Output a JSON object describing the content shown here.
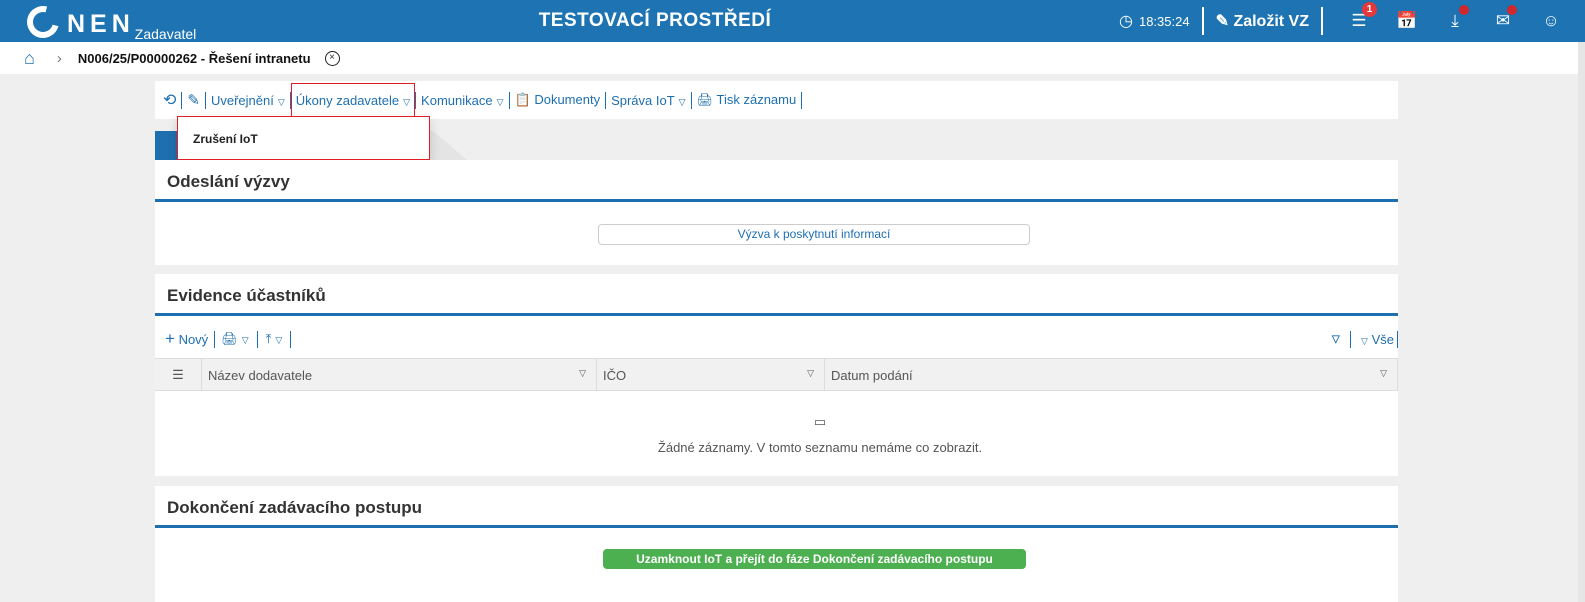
{
  "header": {
    "logo": "NEN",
    "logo_sub": "Zadavatel",
    "env_title": "TESTOVACÍ PROSTŘEDÍ",
    "time": "18:35:24",
    "create_label": "Založit VZ",
    "menu_badge": "1",
    "icons": [
      "clock-icon",
      "edit-icon",
      "menu-icon",
      "calendar-icon",
      "download-icon",
      "mail-icon",
      "user-icon"
    ],
    "accent": "#1e74b3"
  },
  "breadcrumb": {
    "title": "N006/25/P00000262 - Řešení intranetu"
  },
  "toolbar": {
    "items": [
      "Uveřejnění",
      "Úkony zadavatele",
      "Komunikace",
      "Dokumenty",
      "Správa IoT",
      "Tisk záznamu"
    ]
  },
  "dropdown": {
    "items": [
      "Zrušení IoT"
    ]
  },
  "sections": {
    "odeslani": {
      "title": "Odeslání výzvy",
      "button": "Výzva k poskytnutí informací"
    },
    "evidence": {
      "title": "Evidence účastníků",
      "new_label": "Nový",
      "filter_label": "Vše",
      "columns": [
        "Název dodavatele",
        "IČO",
        "Datum podání"
      ],
      "empty": "Žádné záznamy. V tomto seznamu nemáme co zobrazit."
    },
    "dokonceni": {
      "title": "Dokončení zadávacího postupu",
      "button": "Uzamknout IoT a přejít do fáze Dokončení zadávacího postupu",
      "button_color": "#4caf50"
    }
  }
}
